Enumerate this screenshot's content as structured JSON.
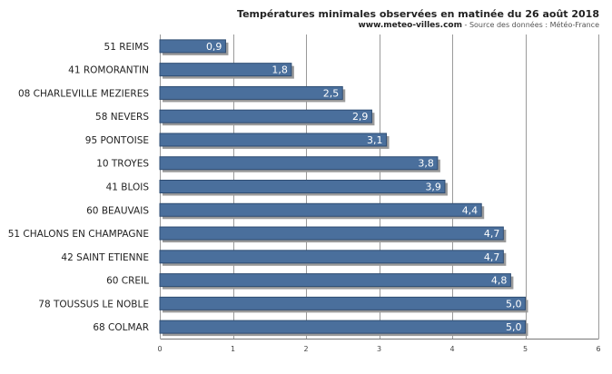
{
  "header": {
    "title": "Températures minimales observées en matinée du 26 août 2018",
    "site": "www.meteo-villes.com",
    "source": " - Source des données : Météo-France"
  },
  "chart_data": {
    "type": "bar",
    "orientation": "horizontal",
    "title": "Températures minimales observées en matinée du 26 août 2018",
    "categories": [
      "51 REIMS",
      "41 ROMORANTIN",
      "08 CHARLEVILLE MEZIERES",
      "58 NEVERS",
      "95 PONTOISE",
      "10 TROYES",
      "41 BLOIS",
      "60 BEAUVAIS",
      "51 CHALONS EN CHAMPAGNE",
      "42 SAINT ETIENNE",
      "60 CREIL",
      "78 TOUSSUS LE NOBLE",
      "68 COLMAR"
    ],
    "values": [
      0.9,
      1.8,
      2.5,
      2.9,
      3.1,
      3.8,
      3.9,
      4.4,
      4.7,
      4.7,
      4.8,
      5.0,
      5.0
    ],
    "value_labels": [
      "0,9",
      "1,8",
      "2,5",
      "2,9",
      "3,1",
      "3,8",
      "3,9",
      "4,4",
      "4,7",
      "4,7",
      "4,8",
      "5,0",
      "5,0"
    ],
    "xlim": [
      0,
      6
    ],
    "xticks": [
      "0",
      "1",
      "2",
      "3",
      "4",
      "5",
      "6"
    ],
    "xlabel": "",
    "ylabel": "",
    "grid": true,
    "bar_color": "#4a6f9c",
    "bar_edge_color": "#2f4d73",
    "shadow_color": "#9a9a9a"
  }
}
